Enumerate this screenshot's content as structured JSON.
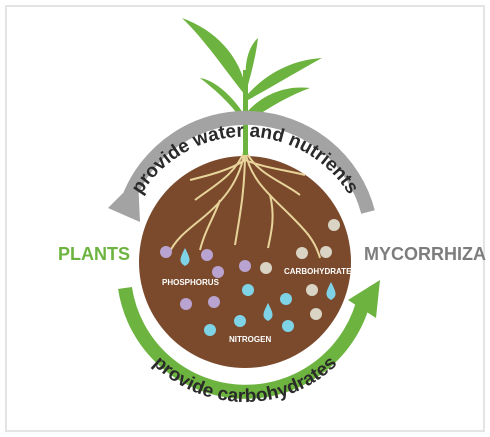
{
  "diagram": {
    "top_label": "provide water and nutrients",
    "bottom_label": "provide carbohydrates",
    "left_label": "PLANTS",
    "right_label": "MYCORRHIZA",
    "nutrients": {
      "phosphorus": "PHOSPHORUS",
      "carbohydrates": "CARBOHYDRATES",
      "nitrogen": "NITROGEN"
    }
  }
}
